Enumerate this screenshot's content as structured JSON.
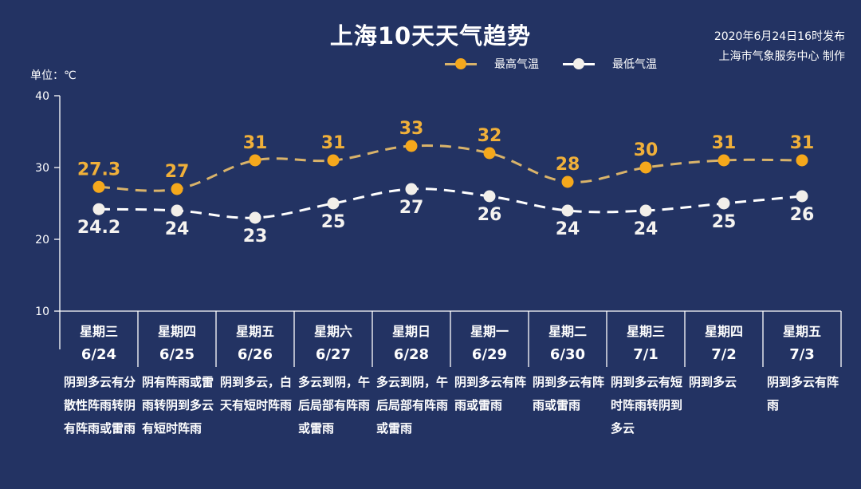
{
  "header": {
    "title": "上海10天天气趋势",
    "publish_time": "2020年6月24日16时发布",
    "producer": "上海市气象服务中心 制作",
    "unit_label": "单位：℃"
  },
  "legend": [
    {
      "label": "最高气温",
      "color": "#F5A81C",
      "line_color": "#D9B36A"
    },
    {
      "label": "最低气温",
      "color": "#F2EFEA",
      "line_color": "#FFFFFF"
    }
  ],
  "colors": {
    "background": "#233363",
    "high": "#F5A81C",
    "high_label": "#F0B03A",
    "low": "#F2EFEA",
    "axis": "#FFFFFF"
  },
  "days": [
    {
      "weekday": "星期三",
      "date": "6/24",
      "desc": "阴到多云有分散性阵雨转阴有阵雨或雷雨"
    },
    {
      "weekday": "星期四",
      "date": "6/25",
      "desc": "阴有阵雨或雷雨转阴到多云有短时阵雨"
    },
    {
      "weekday": "星期五",
      "date": "6/26",
      "desc": "阴到多云，白天有短时阵雨"
    },
    {
      "weekday": "星期六",
      "date": "6/27",
      "desc": "多云到阴，午后局部有阵雨或雷雨"
    },
    {
      "weekday": "星期日",
      "date": "6/28",
      "desc": "多云到阴，午后局部有阵雨或雷雨"
    },
    {
      "weekday": "星期一",
      "date": "6/29",
      "desc": "阴到多云有阵雨或雷雨"
    },
    {
      "weekday": "星期二",
      "date": "6/30",
      "desc": "阴到多云有阵雨或雷雨"
    },
    {
      "weekday": "星期三",
      "date": "7/1",
      "desc": "阴到多云有短时阵雨转阴到多云"
    },
    {
      "weekday": "星期四",
      "date": "7/2",
      "desc": "阴到多云"
    },
    {
      "weekday": "星期五",
      "date": "7/3",
      "desc": "阴到多云有阵雨"
    }
  ],
  "chart_data": {
    "type": "line",
    "title": "上海10天天气趋势",
    "xlabel": "",
    "ylabel": "单位：℃",
    "categories": [
      "6/24",
      "6/25",
      "6/26",
      "6/27",
      "6/28",
      "6/29",
      "6/30",
      "7/1",
      "7/2",
      "7/3"
    ],
    "series": [
      {
        "name": "最高气温",
        "values": [
          27.3,
          27,
          31,
          31,
          33,
          32,
          28,
          30,
          31,
          31
        ],
        "color": "#F5A81C",
        "style": "dashed",
        "labels_position": "above"
      },
      {
        "name": "最低气温",
        "values": [
          24.2,
          24,
          23,
          25,
          27,
          26,
          24,
          24,
          25,
          26
        ],
        "color": "#F2EFEA",
        "style": "dashed",
        "labels_position": "below"
      }
    ],
    "ylim": [
      10,
      40
    ],
    "yticks": [
      10,
      20,
      30,
      40
    ],
    "grid": false,
    "legend_position": "top"
  }
}
